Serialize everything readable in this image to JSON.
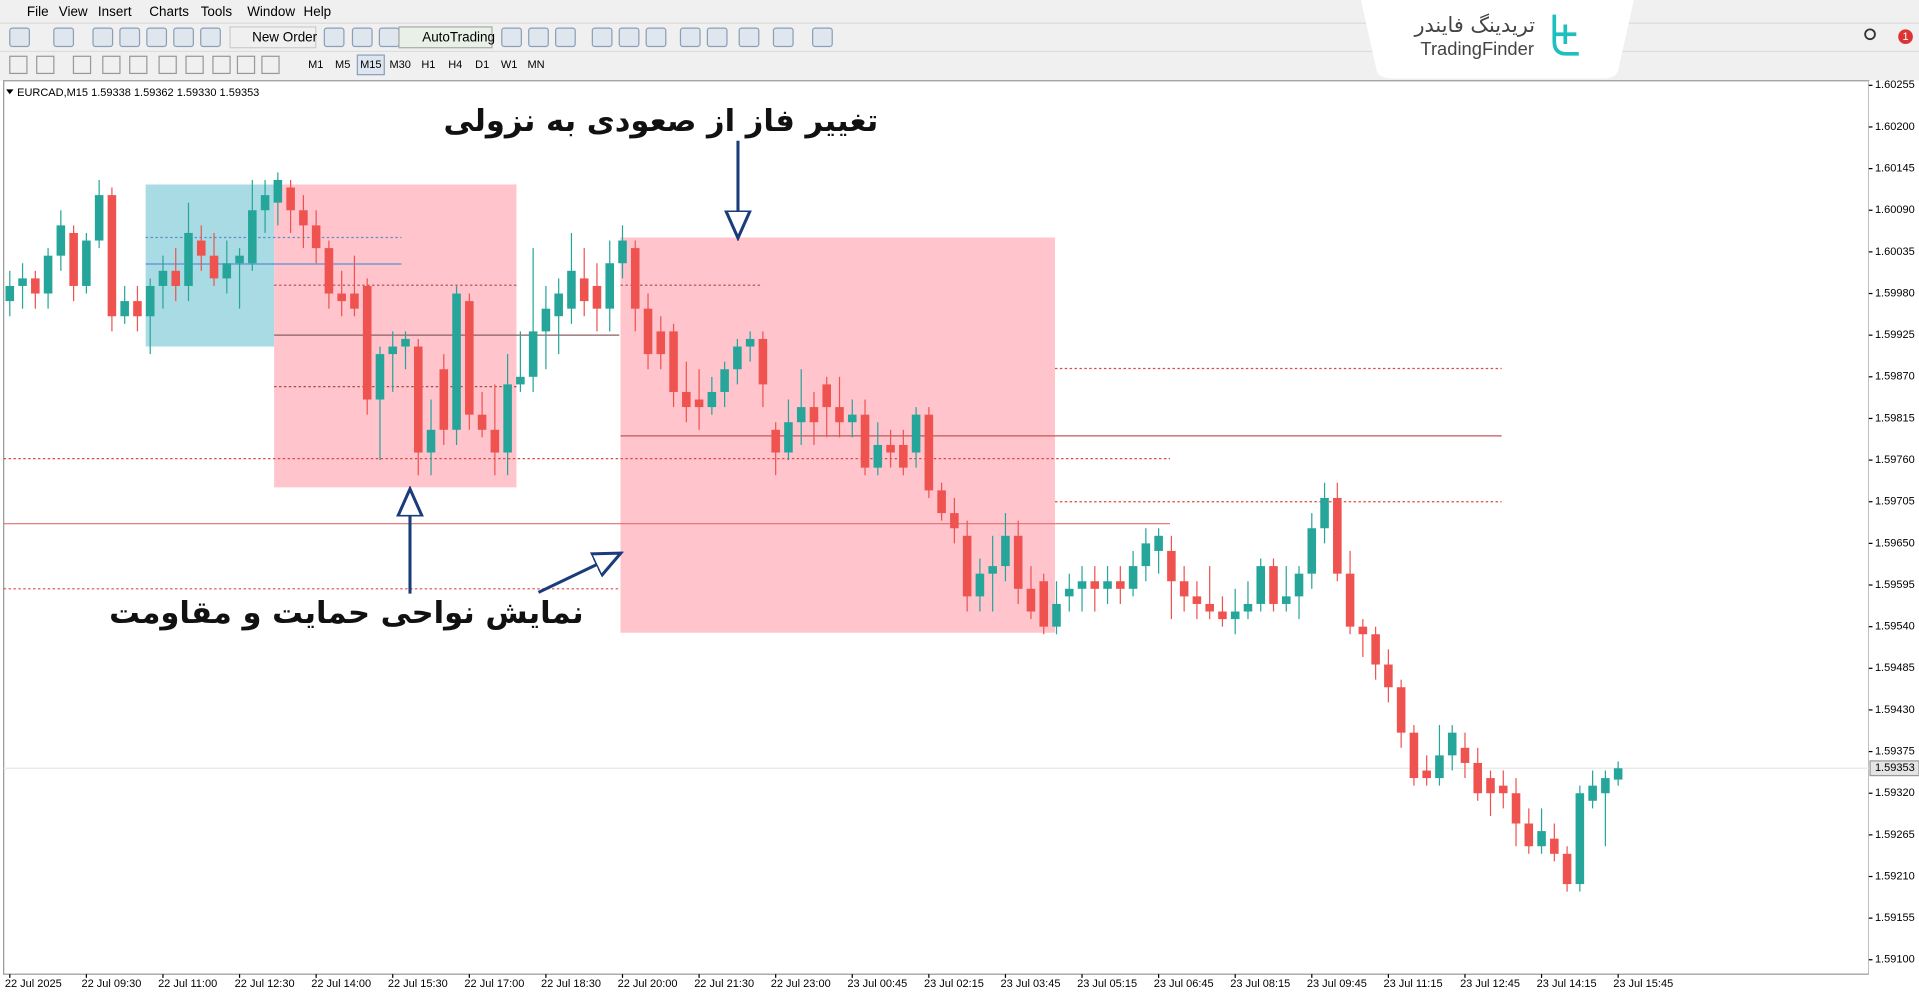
{
  "menu": [
    "File",
    "View",
    "Insert",
    "Charts",
    "Tools",
    "Window",
    "Help"
  ],
  "toolbar": {
    "new_order": "New Order",
    "auto_trading": "AutoTrading",
    "timeframes": [
      "M1",
      "M5",
      "M15",
      "M30",
      "H1",
      "H4",
      "D1",
      "W1",
      "MN"
    ]
  },
  "logo": {
    "persian": "تریدینگ فایندر",
    "latin": "TradingFinder"
  },
  "notification_count": 1,
  "chart_data": {
    "type": "candlestick",
    "header": "EURCAD,M15  1.59338 1.59362 1.59330 1.59353",
    "up_color": "#26a69a",
    "down_color": "#ef5350",
    "ylim": [
      1.59081,
      1.60261
    ],
    "yticks": [
      {
        "value": 1.60255,
        "label": "1.60255"
      },
      {
        "value": 1.602,
        "label": "1.60200"
      },
      {
        "value": 1.60145,
        "label": "1.60145"
      },
      {
        "value": 1.6009,
        "label": "1.60090"
      },
      {
        "value": 1.60035,
        "label": "1.60035"
      },
      {
        "value": 1.5998,
        "label": "1.59980"
      },
      {
        "value": 1.59925,
        "label": "1.59925"
      },
      {
        "value": 1.5987,
        "label": "1.59870"
      },
      {
        "value": 1.59815,
        "label": "1.59815"
      },
      {
        "value": 1.5976,
        "label": "1.59760"
      },
      {
        "value": 1.59705,
        "label": "1.59705"
      },
      {
        "value": 1.5965,
        "label": "1.59650"
      },
      {
        "value": 1.59595,
        "label": "1.59595"
      },
      {
        "value": 1.5954,
        "label": "1.59540"
      },
      {
        "value": 1.59485,
        "label": "1.59485"
      },
      {
        "value": 1.5943,
        "label": "1.59430"
      },
      {
        "value": 1.59375,
        "label": "1.59375"
      },
      {
        "value": 1.5932,
        "label": "1.59320"
      },
      {
        "value": 1.59265,
        "label": "1.59265"
      },
      {
        "value": 1.5921,
        "label": "1.59210"
      },
      {
        "value": 1.59155,
        "label": "1.59155"
      },
      {
        "value": 1.591,
        "label": "1.59100"
      }
    ],
    "xtick_labels": [
      "22 Jul 2025",
      "22 Jul 09:30",
      "22 Jul 11:00",
      "22 Jul 12:30",
      "22 Jul 14:00",
      "22 Jul 15:30",
      "22 Jul 17:00",
      "22 Jul 18:30",
      "22 Jul 20:00",
      "22 Jul 21:30",
      "22 Jul 23:00",
      "23 Jul 00:45",
      "23 Jul 02:15",
      "23 Jul 03:45",
      "23 Jul 05:15",
      "23 Jul 06:45",
      "23 Jul 08:15",
      "23 Jul 09:45",
      "23 Jul 11:15",
      "23 Jul 12:45",
      "23 Jul 14:15",
      "23 Jul 15:45"
    ],
    "open": [
      1.5997,
      1.5999,
      1.6,
      1.5998,
      1.6003,
      1.6006,
      1.5999,
      1.6005,
      1.6011,
      1.5995,
      1.5997,
      1.5995,
      1.5999,
      1.6001,
      1.5999,
      1.6005,
      1.6003,
      1.6,
      1.6002,
      1.6002,
      1.6009,
      1.601,
      1.6012,
      1.6009,
      1.6007,
      1.6004,
      1.5998,
      1.5998,
      1.5999,
      1.5984,
      1.599,
      1.5991,
      1.5991,
      1.5977,
      1.5988,
      1.598,
      1.5997,
      1.5982,
      1.598,
      1.5977,
      1.5986,
      1.5987,
      1.5993,
      1.5995,
      1.5996,
      1.6,
      1.5999,
      1.5996,
      1.6002,
      1.6004,
      1.5996,
      1.5993,
      1.5993,
      1.5985,
      1.5984,
      1.5983,
      1.5985,
      1.5988,
      1.5991,
      1.5992,
      1.598,
      1.5977,
      1.5981,
      1.5983,
      1.5986,
      1.5983,
      1.5981,
      1.5982,
      1.5975,
      1.5978,
      1.5978,
      1.5977,
      1.5982,
      1.5972,
      1.5969,
      1.5966,
      1.5958,
      1.5961,
      1.5962,
      1.5966,
      1.5959,
      1.596,
      1.5954,
      1.5958,
      1.5959,
      1.596,
      1.5959,
      1.596,
      1.5959,
      1.5962,
      1.5964,
      1.5964,
      1.596,
      1.5958,
      1.5957,
      1.5956,
      1.5955,
      1.5956,
      1.5957,
      1.5962,
      1.5957,
      1.5958,
      1.5961,
      1.5967,
      1.5971,
      1.5961,
      1.5954,
      1.5953,
      1.5949,
      1.5946,
      1.594,
      1.5935,
      1.5934,
      1.5937,
      1.5938,
      1.5936,
      1.5934,
      1.5933,
      1.5932,
      1.5928,
      1.5925,
      1.5926,
      1.5924,
      1.592,
      1.5931,
      1.5932,
      1.59338
    ],
    "high": [
      1.6001,
      1.6002,
      1.6001,
      1.6004,
      1.6009,
      1.6007,
      1.6006,
      1.6013,
      1.6012,
      1.5999,
      1.5999,
      1.6,
      1.6003,
      1.6004,
      1.601,
      1.6007,
      1.6006,
      1.6005,
      1.6004,
      1.6013,
      1.6013,
      1.6014,
      1.6013,
      1.6011,
      1.6009,
      1.6005,
      1.6001,
      1.6003,
      1.6,
      1.5991,
      1.5993,
      1.5993,
      1.5992,
      1.5984,
      1.599,
      1.5999,
      1.5998,
      1.5985,
      1.5986,
      1.599,
      1.5993,
      1.6004,
      1.5999,
      1.6,
      1.6006,
      1.6004,
      1.6002,
      1.6005,
      1.6007,
      1.6005,
      1.5998,
      1.5995,
      1.5994,
      1.5989,
      1.5988,
      1.5987,
      1.5989,
      1.5992,
      1.5993,
      1.5993,
      1.5981,
      1.5984,
      1.5988,
      1.5985,
      1.5987,
      1.5987,
      1.5984,
      1.5984,
      1.5981,
      1.598,
      1.598,
      1.5983,
      1.5983,
      1.5973,
      1.5971,
      1.5968,
      1.5963,
      1.5966,
      1.5969,
      1.5968,
      1.5962,
      1.5961,
      1.596,
      1.5961,
      1.5962,
      1.5962,
      1.5962,
      1.5962,
      1.5964,
      1.5967,
      1.5967,
      1.5966,
      1.5962,
      1.596,
      1.5962,
      1.5958,
      1.5959,
      1.596,
      1.5963,
      1.5963,
      1.5962,
      1.5962,
      1.5969,
      1.5973,
      1.5973,
      1.5964,
      1.5955,
      1.5954,
      1.5951,
      1.5947,
      1.5941,
      1.5937,
      1.5941,
      1.5941,
      1.594,
      1.5938,
      1.5935,
      1.5935,
      1.5934,
      1.593,
      1.593,
      1.5928,
      1.5925,
      1.5933,
      1.5935,
      1.5935,
      1.59362
    ],
    "low": [
      1.5995,
      1.5996,
      1.5996,
      1.5996,
      1.6001,
      1.5997,
      1.5998,
      1.6004,
      1.5993,
      1.5994,
      1.5993,
      1.599,
      1.5996,
      1.5997,
      1.5997,
      1.6001,
      1.5999,
      1.5998,
      1.5996,
      1.6001,
      1.6006,
      1.6007,
      1.6006,
      1.6004,
      1.6002,
      1.5996,
      1.5995,
      1.5995,
      1.5982,
      1.5976,
      1.5985,
      1.5988,
      1.5974,
      1.5974,
      1.5978,
      1.5978,
      1.598,
      1.5979,
      1.5974,
      1.5974,
      1.5985,
      1.5985,
      1.5988,
      1.599,
      1.5994,
      1.5995,
      1.5993,
      1.5993,
      1.6,
      1.5993,
      1.5988,
      1.5988,
      1.5983,
      1.5981,
      1.598,
      1.5982,
      1.5983,
      1.5986,
      1.5989,
      1.5983,
      1.5974,
      1.5976,
      1.5978,
      1.5978,
      1.5979,
      1.5979,
      1.5979,
      1.5974,
      1.5974,
      1.5975,
      1.5974,
      1.5975,
      1.5971,
      1.5968,
      1.5965,
      1.5956,
      1.5956,
      1.5956,
      1.596,
      1.5957,
      1.5955,
      1.5953,
      1.5953,
      1.5956,
      1.5956,
      1.5956,
      1.5957,
      1.5957,
      1.5958,
      1.596,
      1.5961,
      1.5955,
      1.5956,
      1.5955,
      1.5955,
      1.5954,
      1.5953,
      1.5955,
      1.5956,
      1.5956,
      1.5956,
      1.5955,
      1.5959,
      1.5965,
      1.596,
      1.5953,
      1.595,
      1.5947,
      1.5944,
      1.5938,
      1.5933,
      1.5933,
      1.5933,
      1.5935,
      1.5934,
      1.5931,
      1.5929,
      1.593,
      1.5925,
      1.5924,
      1.5924,
      1.5923,
      1.5919,
      1.5919,
      1.593,
      1.5925,
      1.5933
    ],
    "close": [
      1.5999,
      1.6,
      1.5998,
      1.6003,
      1.6007,
      1.5999,
      1.6005,
      1.6011,
      1.5995,
      1.5997,
      1.5995,
      1.5999,
      1.6001,
      1.5999,
      1.6006,
      1.6003,
      1.6,
      1.6002,
      1.6003,
      1.6009,
      1.6011,
      1.6013,
      1.6009,
      1.6007,
      1.6004,
      1.5998,
      1.5997,
      1.5996,
      1.5984,
      1.599,
      1.5991,
      1.5992,
      1.5977,
      1.598,
      1.598,
      1.5998,
      1.5982,
      1.598,
      1.5977,
      1.5986,
      1.5987,
      1.5993,
      1.5996,
      1.5998,
      1.6001,
      1.5997,
      1.5996,
      1.6002,
      1.6005,
      1.5996,
      1.599,
      1.599,
      1.5985,
      1.5983,
      1.5983,
      1.5985,
      1.5988,
      1.5991,
      1.5992,
      1.5986,
      1.5977,
      1.5981,
      1.5983,
      1.5981,
      1.5983,
      1.5981,
      1.5982,
      1.5975,
      1.5978,
      1.5977,
      1.5975,
      1.5982,
      1.5972,
      1.5969,
      1.5967,
      1.5958,
      1.5961,
      1.5962,
      1.5966,
      1.5959,
      1.5956,
      1.5954,
      1.5957,
      1.5959,
      1.596,
      1.5959,
      1.596,
      1.5959,
      1.5962,
      1.5965,
      1.5966,
      1.596,
      1.5958,
      1.5957,
      1.5956,
      1.5955,
      1.5956,
      1.5957,
      1.5962,
      1.5957,
      1.5958,
      1.5961,
      1.5967,
      1.5971,
      1.5961,
      1.5954,
      1.5953,
      1.5949,
      1.5946,
      1.594,
      1.5934,
      1.5934,
      1.5937,
      1.594,
      1.5936,
      1.5932,
      1.5932,
      1.5932,
      1.5928,
      1.5925,
      1.5927,
      1.5924,
      1.592,
      1.5932,
      1.5933,
      1.5934,
      1.59353
    ],
    "last_price_label": "1.59353",
    "zones": [
      {
        "top": 1.60124,
        "bottom": 1.5991,
        "color": "#a8dbe3"
      },
      {
        "top": 1.60124,
        "bottom": 1.59724,
        "color": "#ffc4cc"
      },
      {
        "top": 1.60054,
        "bottom": 1.59532,
        "color": "#ffc4cc"
      }
    ],
    "levels": [
      {
        "price": 1.59762,
        "color": "#e04848",
        "dash": true
      },
      {
        "price": 1.5959,
        "color": "#e04848",
        "dash": true
      },
      {
        "price": 1.59676,
        "color": "#e07070",
        "dash": false
      },
      {
        "price": 1.59881,
        "color": "#e04848",
        "dash": true
      },
      {
        "price": 1.59792,
        "color": "#c05858",
        "dash": false
      },
      {
        "price": 1.59705,
        "color": "#e04848",
        "dash": true
      },
      {
        "price": 1.59991,
        "color": "#b04848",
        "dash": true
      },
      {
        "price": 1.59925,
        "color": "#8a6060",
        "dash": false
      },
      {
        "price": 1.59857,
        "color": "#b04848",
        "dash": true
      },
      {
        "price": 1.60054,
        "color": "#5a8fd0",
        "dash": true
      },
      {
        "price": 1.60019,
        "color": "#5a8fd0",
        "dash": false
      },
      {
        "price": 1.59991,
        "color": "#b04848",
        "dash": true
      }
    ],
    "annotations": [
      "تغییر فاز از صعودی به نزولی",
      "نمایش نواحی حمایت و مقاومت"
    ]
  }
}
